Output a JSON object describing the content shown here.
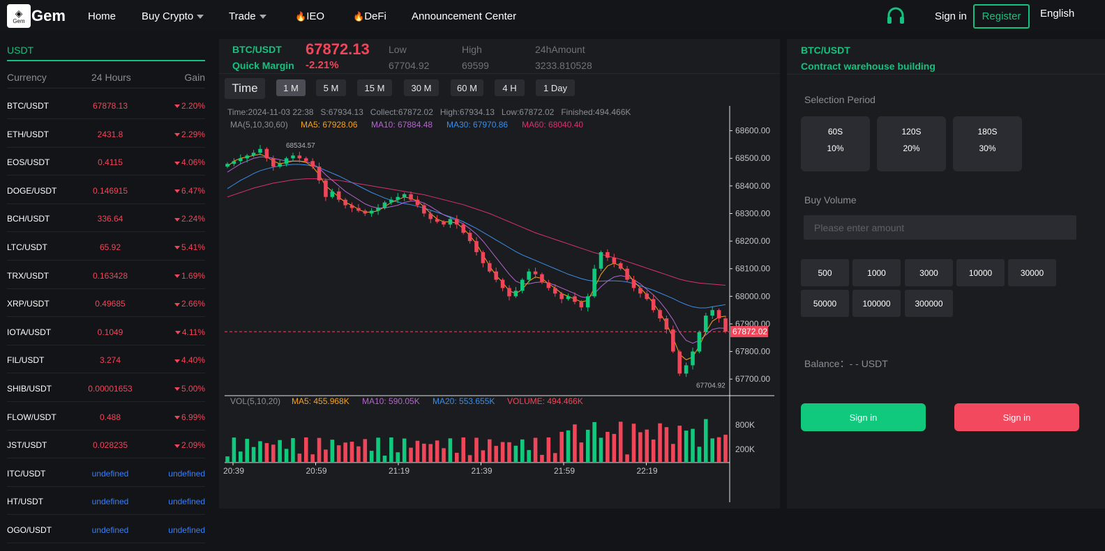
{
  "nav": {
    "logo_small": "Gem",
    "brand": "Gem",
    "home": "Home",
    "buy_crypto": "Buy Crypto",
    "trade": "Trade",
    "ieo": "IEO",
    "defi": "DeFi",
    "announcement": "Announcement Center",
    "sign_in": "Sign in",
    "register": "Register",
    "language": "English"
  },
  "market": {
    "tab": "USDT",
    "headers": {
      "currency": "Currency",
      "hours": "24 Hours",
      "gain": "Gain"
    },
    "rows": [
      {
        "pair": "BTC/USDT",
        "price": "67878.13",
        "gain": "2.20%",
        "status": "down"
      },
      {
        "pair": "ETH/USDT",
        "price": "2431.8",
        "gain": "2.29%",
        "status": "down"
      },
      {
        "pair": "EOS/USDT",
        "price": "0.4115",
        "gain": "4.06%",
        "status": "down"
      },
      {
        "pair": "DOGE/USDT",
        "price": "0.146915",
        "gain": "6.47%",
        "status": "down"
      },
      {
        "pair": "BCH/USDT",
        "price": "336.64",
        "gain": "2.24%",
        "status": "down"
      },
      {
        "pair": "LTC/USDT",
        "price": "65.92",
        "gain": "5.41%",
        "status": "down"
      },
      {
        "pair": "TRX/USDT",
        "price": "0.163428",
        "gain": "1.69%",
        "status": "down"
      },
      {
        "pair": "XRP/USDT",
        "price": "0.49685",
        "gain": "2.66%",
        "status": "down"
      },
      {
        "pair": "IOTA/USDT",
        "price": "0.1049",
        "gain": "4.11%",
        "status": "down"
      },
      {
        "pair": "FIL/USDT",
        "price": "3.274",
        "gain": "4.40%",
        "status": "down"
      },
      {
        "pair": "SHIB/USDT",
        "price": "0.00001653",
        "gain": "5.00%",
        "status": "down"
      },
      {
        "pair": "FLOW/USDT",
        "price": "0.488",
        "gain": "6.99%",
        "status": "down"
      },
      {
        "pair": "JST/USDT",
        "price": "0.028235",
        "gain": "2.09%",
        "status": "down"
      },
      {
        "pair": "ITC/USDT",
        "price": "undefined",
        "gain": "undefined",
        "status": "none"
      },
      {
        "pair": "HT/USDT",
        "price": "undefined",
        "gain": "undefined",
        "status": "none"
      },
      {
        "pair": "OGO/USDT",
        "price": "undefined",
        "gain": "undefined",
        "status": "none"
      }
    ]
  },
  "ticker": {
    "pair": "BTC/USDT",
    "subtitle": "Quick Margin",
    "price": "67872.13",
    "change": "-2.21%",
    "low_label": "Low",
    "low": "67704.92",
    "high_label": "High",
    "high": "69599",
    "amount_label": "24hAmount",
    "amount": "3233.810528"
  },
  "periods": {
    "time": "Time",
    "items": [
      "1 M",
      "5 M",
      "15 M",
      "30 M",
      "60 M",
      "4 H",
      "1 Day"
    ],
    "active": "1 M"
  },
  "chart_info": {
    "line1": "Time:2024-11-03 22:38   S:67934.13   Collect:67872.02   High:67934.13   Low:67872.02   Finished:494.466K",
    "ma_label": "MA(5,10,30,60)",
    "ma5": "MA5: 67928.06",
    "ma10": "MA10: 67884.48",
    "ma30": "MA30: 67970.86",
    "ma60": "MA60: 68040.40",
    "vol_label": "VOL(5,10,20)",
    "vma5": "MA5: 455.968K",
    "vma10": "MA10: 590.05K",
    "vma20": "MA20: 553.655K",
    "volume": "VOLUME: 494.466K",
    "price_tag": "67872.02",
    "high_marker": "68534.57",
    "low_marker": "67704.92"
  },
  "chart_data": {
    "type": "candlestick",
    "x_ticks": [
      "20:39",
      "20:59",
      "21:19",
      "21:39",
      "21:59",
      "22:19"
    ],
    "y_ticks": [
      "68600.00",
      "68500.00",
      "68400.00",
      "68300.00",
      "68200.00",
      "68100.00",
      "68000.00",
      "67900.00",
      "67800.00",
      "67700.00"
    ],
    "ylim": [
      67640,
      68700
    ],
    "volume_ticks": [
      "800K",
      "200K"
    ],
    "close_path": [
      68480,
      68490,
      68500,
      68510,
      68520,
      68534,
      68500,
      68470,
      68480,
      68500,
      68510,
      68500,
      68490,
      68470,
      68420,
      68360,
      68380,
      68350,
      68330,
      68320,
      68310,
      68300,
      68310,
      68320,
      68340,
      68350,
      68360,
      68370,
      68350,
      68330,
      68300,
      68280,
      68270,
      68260,
      68280,
      68260,
      68230,
      68200,
      68160,
      68120,
      68090,
      68060,
      68030,
      68000,
      68020,
      68060,
      68090,
      68080,
      68050,
      68030,
      68010,
      67990,
      68000,
      67980,
      67960,
      68000,
      68100,
      68160,
      68140,
      68120,
      68100,
      68060,
      68030,
      68010,
      67990,
      67950,
      67920,
      67880,
      67800,
      67720,
      67750,
      67800,
      67870,
      67930,
      67950,
      67920,
      67872
    ],
    "ma5": [
      68470,
      68490,
      68500,
      68505,
      68510,
      68515,
      68505,
      68490,
      68480,
      68485,
      68490,
      68490,
      68485,
      68470,
      68440,
      68400,
      68380,
      68360,
      68340,
      68330,
      68315,
      68305,
      68305,
      68310,
      68325,
      68340,
      68350,
      68360,
      68355,
      68345,
      68325,
      68300,
      68280,
      68270,
      68270,
      68265,
      68245,
      68220,
      68190,
      68150,
      68110,
      68075,
      68050,
      68020,
      68010,
      68025,
      68055,
      68070,
      68065,
      68045,
      68030,
      68010,
      68000,
      67990,
      67980,
      67985,
      68030,
      68080,
      68110,
      68120,
      68110,
      68085,
      68055,
      68030,
      68005,
      67975,
      67940,
      67900,
      67850,
      67790,
      67770,
      67780,
      67820,
      67870,
      67910,
      67925,
      67928
    ],
    "ma10": [
      68450,
      68465,
      68480,
      68490,
      68500,
      68505,
      68505,
      68500,
      68495,
      68490,
      68490,
      68490,
      68488,
      68480,
      68465,
      68440,
      68420,
      68400,
      68380,
      68365,
      68350,
      68335,
      68325,
      68320,
      68320,
      68325,
      68330,
      68340,
      68345,
      68345,
      68338,
      68325,
      68310,
      68295,
      68285,
      68275,
      68262,
      68245,
      68225,
      68200,
      68170,
      68140,
      68110,
      68080,
      68055,
      68045,
      68045,
      68050,
      68052,
      68048,
      68040,
      68030,
      68020,
      68010,
      67998,
      67995,
      68010,
      68035,
      68055,
      68070,
      68075,
      68070,
      68060,
      68045,
      68025,
      68005,
      67980,
      67950,
      67915,
      67870,
      67840,
      67830,
      67840,
      67860,
      67880,
      67885,
      67884
    ],
    "ma30": [
      68390,
      68405,
      68420,
      68432,
      68445,
      68455,
      68462,
      68468,
      68472,
      68476,
      68478,
      68478,
      68476,
      68472,
      68466,
      68456,
      68446,
      68436,
      68424,
      68412,
      68400,
      68388,
      68376,
      68366,
      68356,
      68348,
      68342,
      68336,
      68332,
      68326,
      68320,
      68312,
      68304,
      68296,
      68288,
      68280,
      68270,
      68258,
      68246,
      68232,
      68218,
      68204,
      68190,
      68176,
      68162,
      68150,
      68140,
      68130,
      68120,
      68110,
      68100,
      68090,
      68080,
      68072,
      68064,
      68058,
      68055,
      68055,
      68056,
      68056,
      68055,
      68052,
      68046,
      68038,
      68030,
      68022,
      68012,
      68002,
      67992,
      67980,
      67970,
      67962,
      67958,
      67958,
      67962,
      67966,
      67970
    ],
    "ma60": [
      68360,
      68368,
      68376,
      68384,
      68392,
      68398,
      68404,
      68410,
      68414,
      68418,
      68422,
      68424,
      68426,
      68426,
      68426,
      68424,
      68422,
      68420,
      68416,
      68412,
      68408,
      68404,
      68400,
      68396,
      68392,
      68388,
      68384,
      68380,
      68376,
      68372,
      68368,
      68362,
      68356,
      68350,
      68344,
      68338,
      68332,
      68324,
      68316,
      68308,
      68300,
      68290,
      68280,
      68270,
      68260,
      68250,
      68240,
      68230,
      68222,
      68214,
      68206,
      68198,
      68190,
      68182,
      68174,
      68166,
      68158,
      68152,
      68146,
      68140,
      68134,
      68126,
      68118,
      68110,
      68102,
      68094,
      68086,
      68078,
      68070,
      68062,
      68056,
      68052,
      68048,
      68046,
      68044,
      68042,
      68040
    ],
    "volume_note": "volume bars shown in lower pane, last volume 494.466K",
    "last_close": 67872.02
  },
  "order": {
    "pair": "BTC/USDT",
    "subtitle": "Contract warehouse building",
    "selection_label": "Selection Period",
    "periods": [
      {
        "time": "60S",
        "rate": "10%"
      },
      {
        "time": "120S",
        "rate": "20%"
      },
      {
        "time": "180S",
        "rate": "30%"
      }
    ],
    "buy_volume_label": "Buy Volume",
    "amount_placeholder": "Please enter amount",
    "quick_amounts": [
      "500",
      "1000",
      "3000",
      "10000",
      "30000",
      "50000",
      "100000",
      "300000"
    ],
    "balance": "Balance：- - USDT",
    "buy_button": "Sign in",
    "sell_button": "Sign in"
  }
}
